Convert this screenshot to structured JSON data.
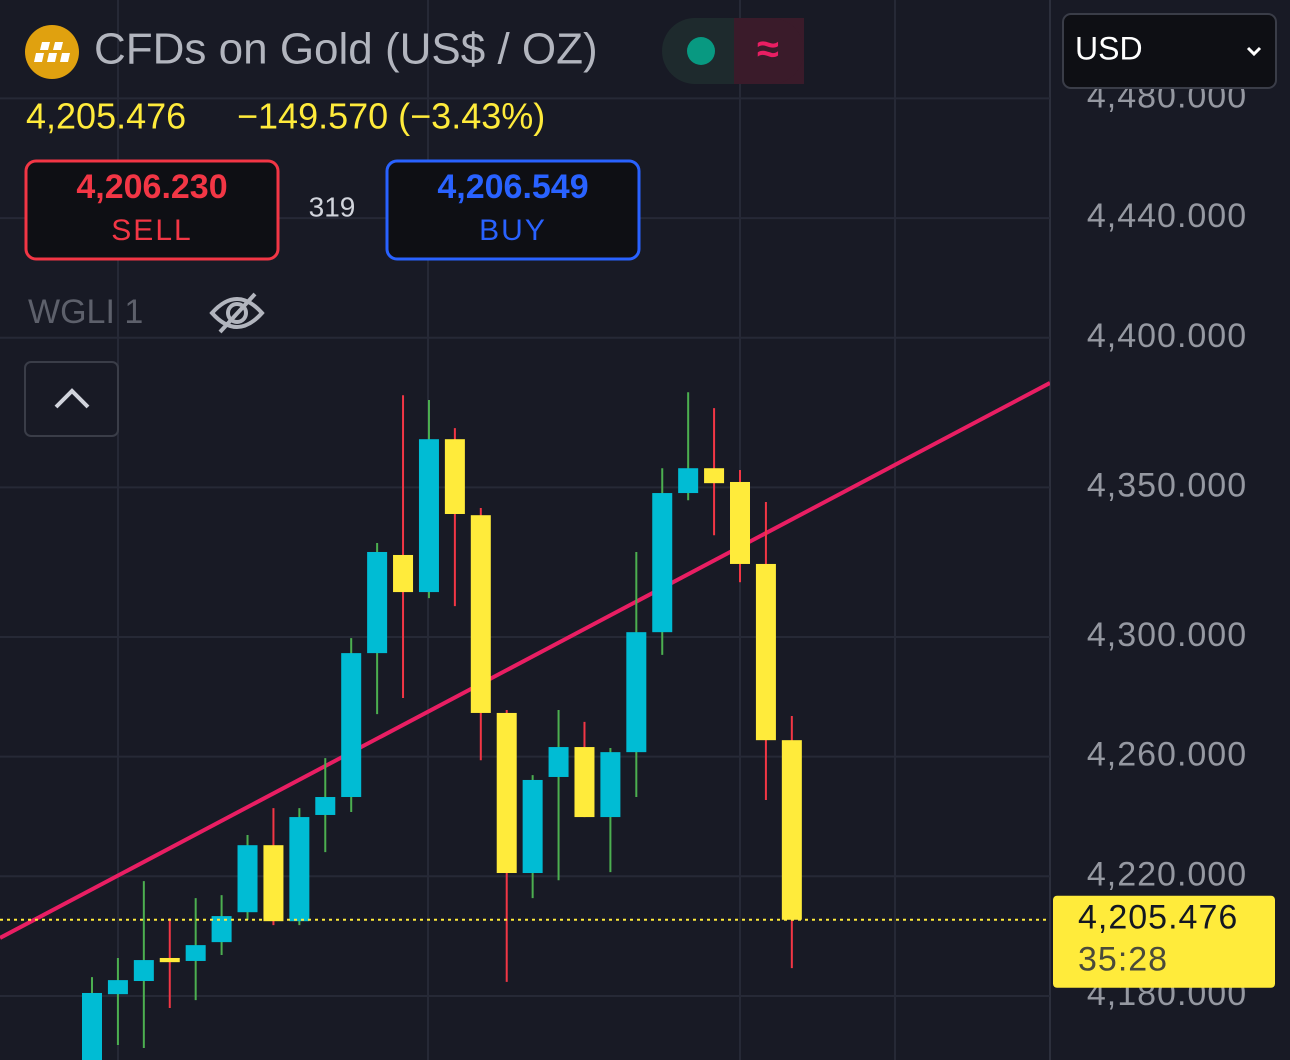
{
  "header": {
    "title": "CFDs on Gold (US$ / OZ)",
    "quote": "4,205.476",
    "change": "−149.570 (−3.43%)",
    "sell_price": "4,206.230",
    "sell_label": "SELL",
    "spread": "319",
    "buy_price": "4,206.549",
    "buy_label": "BUY",
    "indicator": "WGLI 1",
    "currency": "USD",
    "status_icon": "≈"
  },
  "chart_data": {
    "type": "candlestick",
    "categories": [
      null,
      null,
      null,
      null,
      null,
      null,
      null,
      null,
      null,
      null,
      null,
      null,
      null,
      null,
      null,
      null,
      null,
      null,
      null,
      null,
      null,
      null,
      null,
      null,
      null,
      null,
      null,
      null
    ],
    "open": [
      4156.0,
      4180.6,
      4185.0,
      4192.7,
      4191.7,
      4198.0,
      4208.0,
      4230.4,
      4205.0,
      4240.5,
      4246.5,
      4294.6,
      4327.4,
      4315.0,
      4366.1,
      4340.7,
      4274.6,
      4221.1,
      4253.2,
      4263.2,
      4239.8,
      4261.5,
      4301.6,
      4348.1,
      4356.4,
      4351.8,
      4324.4,
      4265.5
    ],
    "high": [
      4186.3,
      4192.7,
      4218.4,
      4206.0,
      4212.7,
      4213.7,
      4233.8,
      4242.8,
      4242.8,
      4259.5,
      4299.6,
      4331.4,
      4380.8,
      4379.2,
      4369.8,
      4343.1,
      4275.6,
      4253.8,
      4275.6,
      4271.6,
      4262.9,
      4328.4,
      4356.4,
      4381.8,
      4376.5,
      4355.8,
      4345.1,
      4273.6
    ],
    "low": [
      4150.0,
      4163.6,
      4162.6,
      4176.0,
      4178.6,
      4193.7,
      4205.4,
      4203.7,
      4203.7,
      4228.1,
      4241.5,
      4274.2,
      4279.6,
      4313.0,
      4310.3,
      4258.8,
      4184.7,
      4212.7,
      4218.7,
      4239.8,
      4221.4,
      4246.5,
      4294.0,
      4345.7,
      4334.0,
      4318.3,
      4245.5,
      4189.3
    ],
    "close": [
      4181.0,
      4185.3,
      4192.0,
      4191.3,
      4197.0,
      4206.7,
      4230.4,
      4205.0,
      4239.8,
      4246.5,
      4294.6,
      4328.4,
      4315.0,
      4366.1,
      4341.1,
      4274.6,
      4221.1,
      4252.2,
      4263.2,
      4239.8,
      4261.5,
      4301.6,
      4348.1,
      4356.4,
      4351.4,
      4324.4,
      4265.5,
      4205.476
    ],
    "up_color": "#00bcd4",
    "down_color": "#ffeb3b",
    "up_wick_color": "#4caf50",
    "down_wick_color": "#f23645",
    "ylim": [
      4158.6,
      4512.9
    ],
    "yticks": [
      {
        "value": 4180,
        "label": "4,180.000"
      },
      {
        "value": 4220,
        "label": "4,220.000"
      },
      {
        "value": 4260,
        "label": "4,260.000"
      },
      {
        "value": 4300,
        "label": "4,300.000"
      },
      {
        "value": 4350,
        "label": "4,350.000"
      },
      {
        "value": 4400,
        "label": "4,400.000"
      },
      {
        "value": 4440,
        "label": "4,440.000"
      },
      {
        "value": 4480,
        "label": "4,480.000"
      }
    ],
    "grid": true,
    "trendline": {
      "color": "#e91e63",
      "values": [
        4199.4,
        4384.9
      ]
    },
    "last_price_label": "4,205.476",
    "countdown": "35:28"
  }
}
